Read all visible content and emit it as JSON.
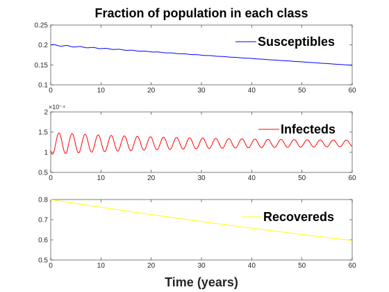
{
  "chart_data": {
    "type": "line",
    "title": "Fraction of population in each class",
    "xlabel": "Time (years)",
    "panels": [
      {
        "name": "Susceptibles",
        "color": "#0000ff",
        "xlim": [
          0,
          60
        ],
        "ylim": [
          0.1,
          0.25
        ],
        "xticks": [
          "0",
          "10",
          "20",
          "30",
          "40",
          "50",
          "60"
        ],
        "yticks": [
          "0.1",
          "0.15",
          "0.2",
          "0.25"
        ],
        "exponent_label": "",
        "model": {
          "kind": "oscillating_decay",
          "start": 0.2,
          "end": 0.149,
          "amp": 0.0015,
          "period": 2.6,
          "damp": 18
        },
        "legend": "Susceptibles"
      },
      {
        "name": "Infecteds",
        "color": "#ff0000",
        "xlim": [
          0,
          60
        ],
        "ylim": [
          0.5,
          2
        ],
        "xticks": [
          "0",
          "10",
          "20",
          "30",
          "40",
          "50",
          "60"
        ],
        "yticks": [
          "0.5",
          "1",
          "1.5",
          "2"
        ],
        "exponent_label": "×10⁻⁴",
        "model": {
          "kind": "damped_oscillation",
          "base": 1.22,
          "amp": 0.27,
          "period": 2.6,
          "damp": 30,
          "floor_amp": 0.05
        },
        "legend": "Infecteds"
      },
      {
        "name": "Recovereds",
        "color": "#ffff00",
        "xlim": [
          0,
          60
        ],
        "ylim": [
          0.5,
          0.8
        ],
        "xticks": [
          "0",
          "10",
          "20",
          "30",
          "40",
          "50",
          "60"
        ],
        "yticks": [
          "0.5",
          "0.6",
          "0.7",
          "0.8"
        ],
        "exponent_label": "",
        "model": {
          "kind": "exp_decay",
          "start": 0.8,
          "end": 0.597
        },
        "legend": "Recovereds"
      }
    ],
    "grid": false,
    "legend_position": "top-right"
  }
}
